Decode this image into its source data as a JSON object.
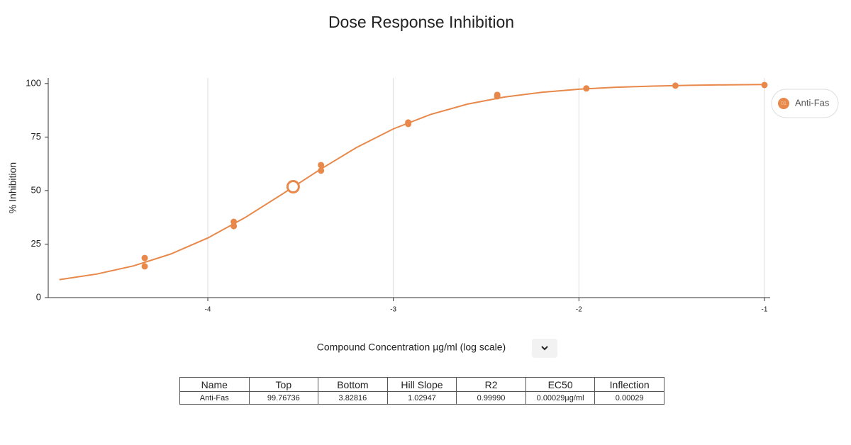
{
  "chart_data": {
    "type": "dose-response",
    "title": "Dose Response Inhibition",
    "x_label": "Compound Concentration µg/ml (log scale)",
    "y_label": "% Inhibition",
    "series": [
      {
        "name": "Anti-Fas",
        "color": "#e8884a",
        "x": [
          -4.34,
          -4.34,
          -3.86,
          -3.86,
          -3.39,
          -3.39,
          -2.92,
          -2.92,
          -2.44,
          -2.44,
          -1.96,
          -1.48,
          -1.0
        ],
        "values": [
          18.5,
          14.6,
          35.4,
          33.4,
          61.9,
          59.3,
          81.8,
          81.1,
          94.7,
          94.0,
          97.7,
          99.0,
          99.3
        ]
      }
    ],
    "legend_badge": "01",
    "curve": {
      "x": [
        -4.8,
        -4.6,
        -4.4,
        -4.2,
        -4.0,
        -3.8,
        -3.6,
        -3.4,
        -3.2,
        -3.0,
        -2.8,
        -2.6,
        -2.4,
        -2.2,
        -2.0,
        -1.8,
        -1.6,
        -1.4,
        -1.2,
        -1.0
      ],
      "values": [
        8.41,
        10.98,
        14.83,
        20.35,
        27.86,
        37.34,
        48.27,
        59.55,
        70.03,
        78.81,
        85.55,
        90.4,
        93.71,
        95.91,
        97.33,
        98.24,
        98.81,
        99.17,
        99.39,
        99.54
      ]
    },
    "marker": {
      "x": -3.54,
      "y": 51.8
    },
    "xlim": [
      -4.86,
      -1
    ],
    "xticks": [
      -4,
      -3,
      -2,
      -1
    ],
    "ylim": [
      0,
      102.6
    ],
    "yticks": [
      0,
      25,
      50,
      75,
      100
    ],
    "grid": "x",
    "legend": "right"
  },
  "table": {
    "columns": [
      "Name",
      "Top",
      "Bottom",
      "Hill Slope",
      "R2",
      "EC50",
      "Inflection"
    ],
    "rows": [
      [
        "Anti-Fas",
        "99.76736",
        "3.82816",
        "1.02947",
        "0.99990",
        "0.00029µg/ml",
        "0.00029"
      ]
    ]
  }
}
